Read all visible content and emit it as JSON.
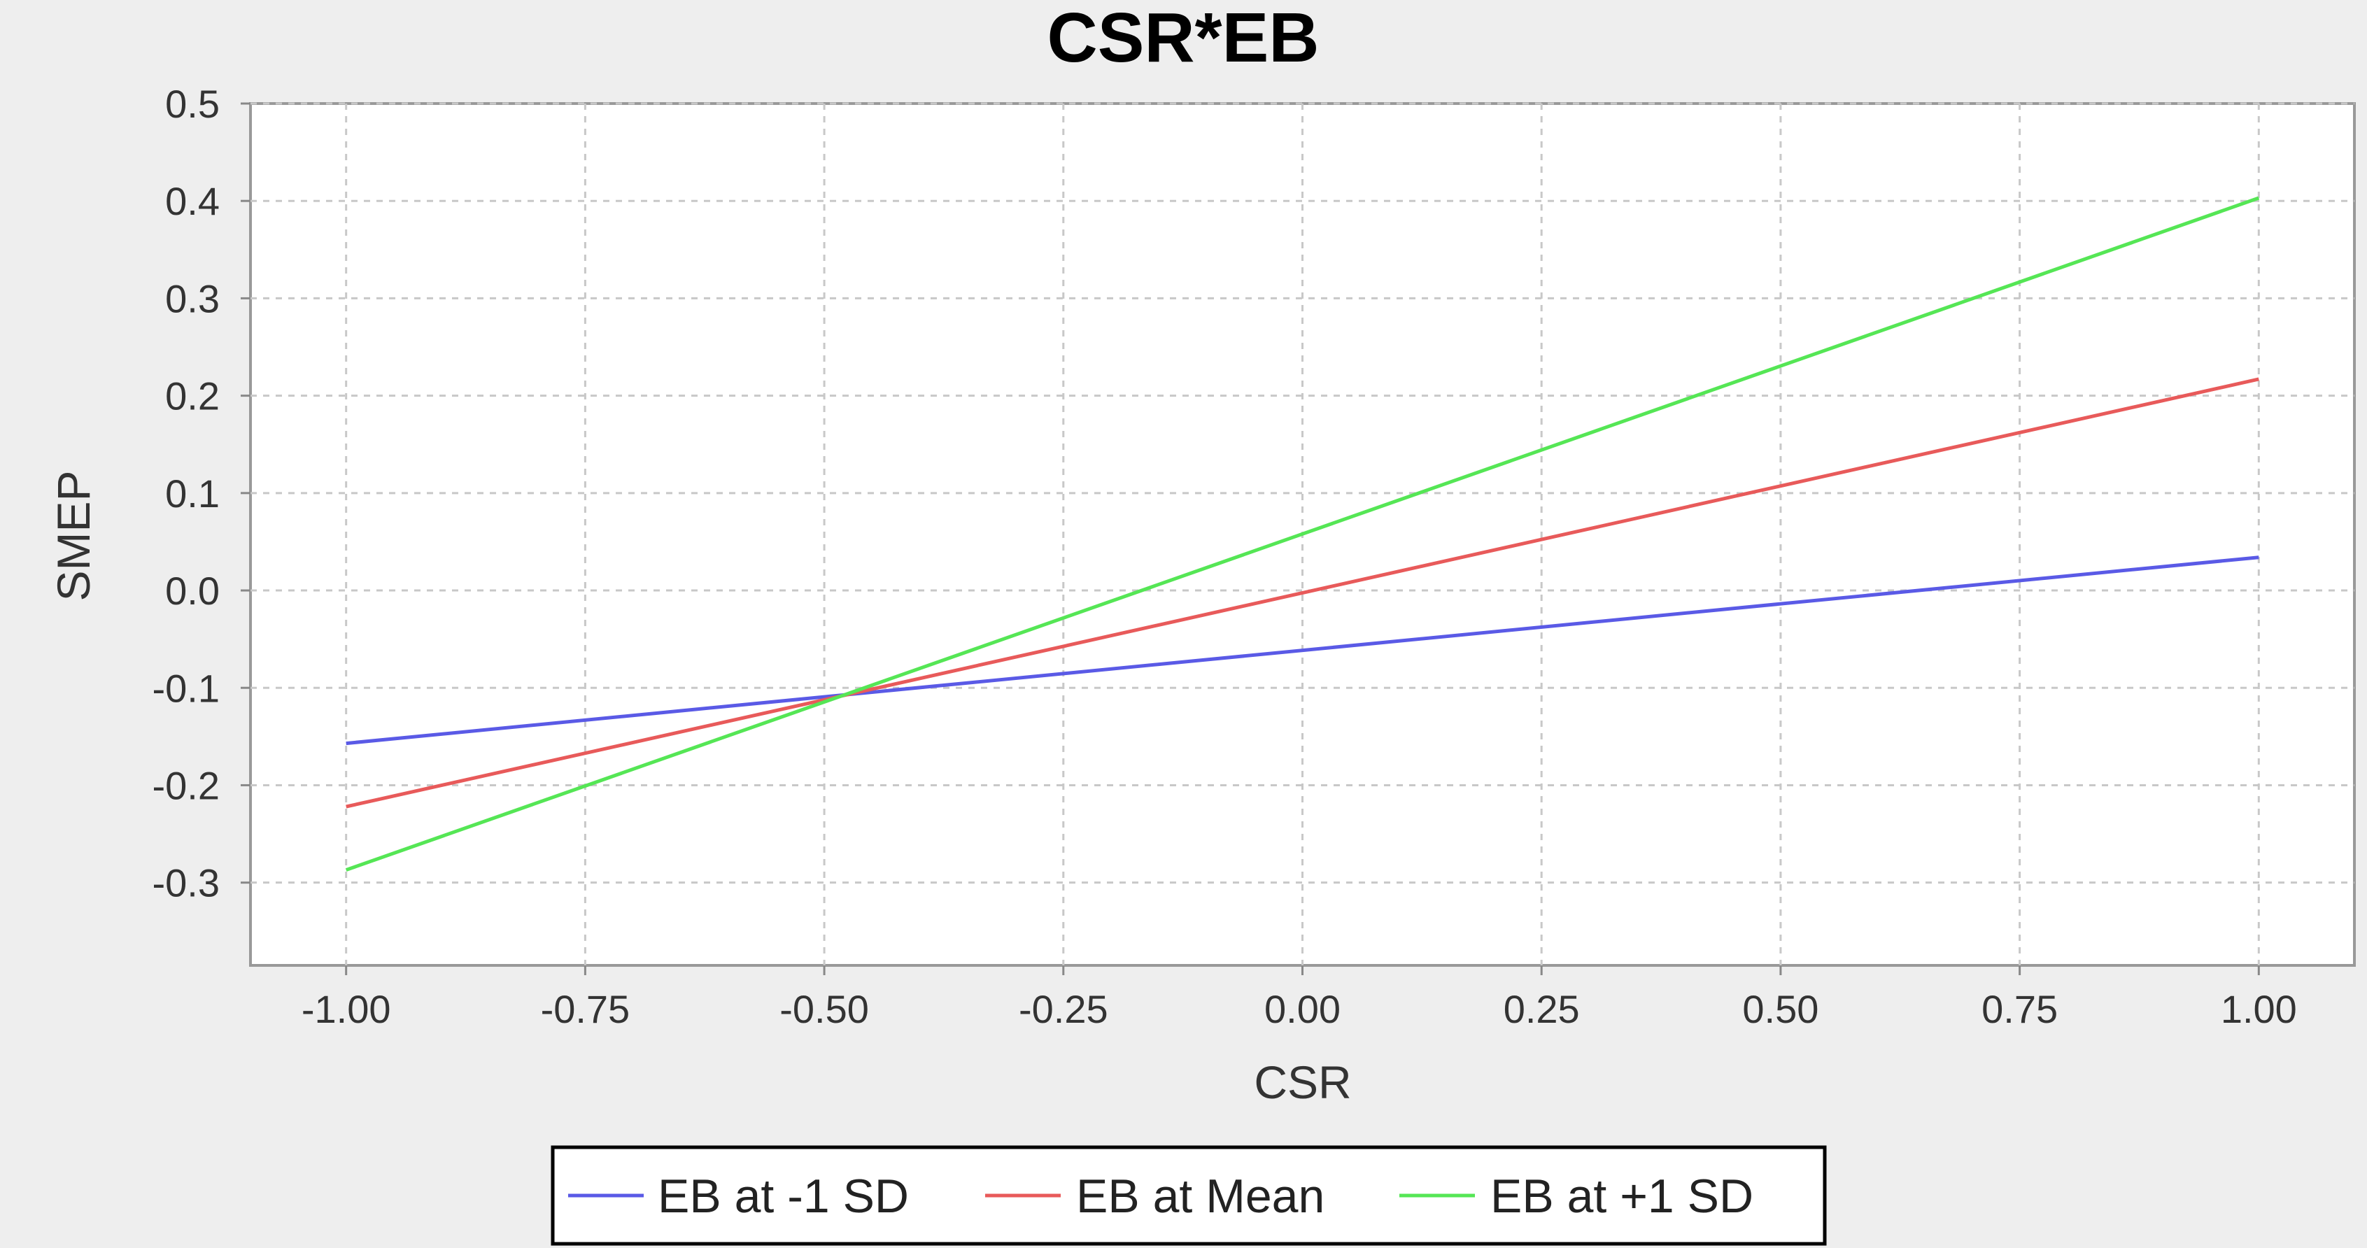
{
  "chart_data": {
    "type": "line",
    "title": "CSR*EB",
    "xlabel": "CSR",
    "ylabel": "SMEP",
    "xlim": [
      -1.1,
      1.1
    ],
    "ylim": [
      -0.385,
      0.5
    ],
    "x_ticks": [
      "-1.00",
      "-0.75",
      "-0.50",
      "-0.25",
      "0.00",
      "0.25",
      "0.50",
      "0.75",
      "1.00"
    ],
    "y_ticks": [
      "-0.3",
      "-0.2",
      "-0.1",
      "0.0",
      "0.1",
      "0.2",
      "0.3",
      "0.4",
      "0.5"
    ],
    "grid": true,
    "legend_position": "bottom",
    "series": [
      {
        "name": "EB at -1 SD",
        "color": "#5a5ae6",
        "x": [
          -1.0,
          1.0
        ],
        "y": [
          -0.157,
          0.034
        ]
      },
      {
        "name": "EB at Mean",
        "color": "#e85a5a",
        "x": [
          -1.0,
          1.0
        ],
        "y": [
          -0.222,
          0.217
        ]
      },
      {
        "name": "EB at +1 SD",
        "color": "#55e655",
        "x": [
          -1.0,
          1.0
        ],
        "y": [
          -0.287,
          0.403
        ]
      }
    ]
  }
}
